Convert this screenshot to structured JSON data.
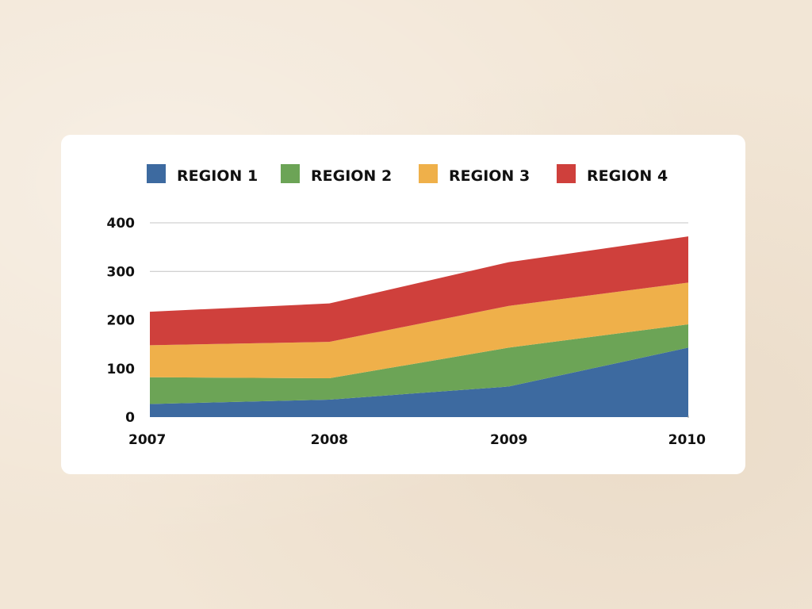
{
  "chart_data": {
    "type": "area",
    "stacked": true,
    "x": [
      "2007",
      "2008",
      "2009",
      "2010"
    ],
    "ylim": [
      0,
      400
    ],
    "yticks": [
      "0",
      "100",
      "200",
      "300",
      "400"
    ],
    "grid": true,
    "legend_position": "top",
    "series": [
      {
        "name": "REGION 1",
        "color": "#3d6aa0",
        "values": [
          27,
          36,
          63,
          143
        ]
      },
      {
        "name": "REGION 2",
        "color": "#6ca456",
        "values": [
          55,
          44,
          80,
          48
        ]
      },
      {
        "name": "REGION 3",
        "color": "#efb04a",
        "values": [
          66,
          75,
          86,
          86
        ]
      },
      {
        "name": "REGION 4",
        "color": "#cf403c",
        "values": [
          69,
          79,
          90,
          95
        ]
      }
    ]
  }
}
